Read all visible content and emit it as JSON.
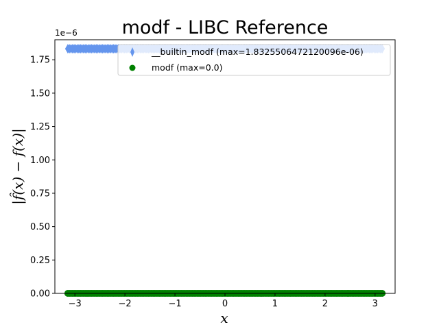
{
  "chart_data": {
    "type": "scatter",
    "title": "modf - LIBC Reference",
    "xlabel": "x",
    "ylabel": "|f̂(x) − f(x)|",
    "y_offset_label": "1e−6",
    "xlim": [
      -3.4,
      3.4
    ],
    "ylim": [
      0,
      1.9
    ],
    "y_scale_note": "values ×1e−6",
    "x_ticks": [
      -3,
      -2,
      -1,
      0,
      1,
      2,
      3
    ],
    "x_tick_labels": [
      "−3",
      "−2",
      "−1",
      "0",
      "1",
      "2",
      "3"
    ],
    "y_ticks": [
      0,
      0.25,
      0.5,
      0.75,
      1.0,
      1.25,
      1.5,
      1.75
    ],
    "y_tick_labels": [
      "0.00",
      "0.25",
      "0.50",
      "0.75",
      "1.00",
      "1.25",
      "1.50",
      "1.75"
    ],
    "legend_position": "top-right",
    "series": [
      {
        "name": "__builtin_modf (max=1.8325506472120096e-06)",
        "marker": "thin-diamond",
        "color": "#6495ed",
        "x_range": [
          -3.14159,
          3.14159
        ],
        "n_points": 200,
        "constant_value": 1.8325506472120097
      },
      {
        "name": "modf (max=0.0)",
        "marker": "circle",
        "color": "#008000",
        "x_range": [
          -3.14159,
          3.14159
        ],
        "n_points": 200,
        "constant_value": 0.0
      }
    ]
  }
}
